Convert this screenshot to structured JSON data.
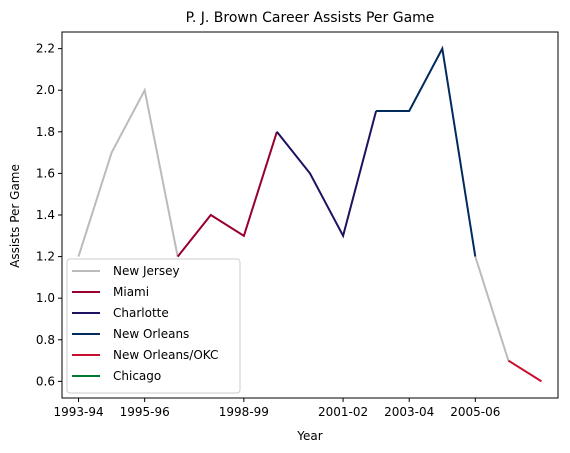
{
  "chart_data": {
    "type": "line",
    "title": "P. J. Brown Career Assists Per Game",
    "xlabel": "Year",
    "ylabel": "Assists Per Game",
    "x_tick_labels": [
      "1993-94",
      "1995-96",
      "1998-99",
      "2001-02",
      "2003-04",
      "2005-06"
    ],
    "y_ticks": [
      0.6,
      0.8,
      1.0,
      1.2,
      1.4,
      1.6,
      1.8,
      2.0,
      2.2
    ],
    "ylim": [
      0.52,
      2.28
    ],
    "grid": false,
    "legend_position": "lower-left",
    "seasons": [
      "1993-94",
      "1994-95",
      "1995-96",
      "1996-97",
      "1997-98",
      "1998-99",
      "1999-00",
      "2000-01",
      "2001-02",
      "2002-03",
      "2003-04",
      "2004-05",
      "2005-06",
      "2006-07",
      "2007-08"
    ],
    "series": [
      {
        "name": "New Jersey",
        "color": "#bbbbbb",
        "points": [
          {
            "x": "1993-94",
            "y": 1.2
          },
          {
            "x": "1994-95",
            "y": 1.7
          },
          {
            "x": "1995-96",
            "y": 2.0
          },
          {
            "x": "1996-97",
            "y": 1.2
          }
        ]
      },
      {
        "name": "Miami",
        "color": "#98002e",
        "points": [
          {
            "x": "1996-97",
            "y": 1.2
          },
          {
            "x": "1997-98",
            "y": 1.4
          },
          {
            "x": "1998-99",
            "y": 1.3
          },
          {
            "x": "1999-00",
            "y": 1.8
          }
        ]
      },
      {
        "name": "Charlotte",
        "color": "#1d1160",
        "points": [
          {
            "x": "1999-00",
            "y": 1.8
          },
          {
            "x": "2000-01",
            "y": 1.6
          },
          {
            "x": "2001-02",
            "y": 1.3
          },
          {
            "x": "2002-03",
            "y": 1.9
          }
        ]
      },
      {
        "name": "New Orleans",
        "color": "#002b5c",
        "points": [
          {
            "x": "2002-03",
            "y": 1.9
          },
          {
            "x": "2003-04",
            "y": 1.9
          },
          {
            "x": "2004-05",
            "y": 2.2
          },
          {
            "x": "2005-06",
            "y": 1.2
          }
        ]
      },
      {
        "name": "New Jersey",
        "color": "#bbbbbb",
        "points": [
          {
            "x": "2005-06",
            "y": 1.2
          },
          {
            "x": "2006-07",
            "y": 0.7
          }
        ]
      },
      {
        "name": "New Orleans/OKC",
        "color": "#c8102e",
        "points": [
          {
            "x": "2006-07",
            "y": 0.7
          },
          {
            "x": "2007-08",
            "y": 0.6
          }
        ]
      }
    ],
    "legend": [
      {
        "name": "New Jersey",
        "color": "#bbbbbb"
      },
      {
        "name": "Miami",
        "color": "#98002e"
      },
      {
        "name": "Charlotte",
        "color": "#1d1160"
      },
      {
        "name": "New Orleans",
        "color": "#002b5c"
      },
      {
        "name": "New Orleans/OKC",
        "color": "#c8102e"
      },
      {
        "name": "Chicago",
        "color": "#007a33"
      }
    ]
  }
}
